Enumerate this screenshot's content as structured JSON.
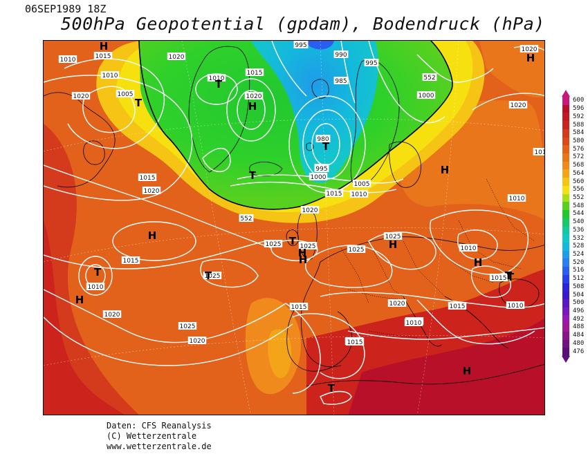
{
  "header": {
    "datetime": "06SEP1989 18Z",
    "title": "500hPa Geopotential (gpdam), Bodendruck (hPa)"
  },
  "credits": {
    "line1": "Daten: CFS Reanalysis",
    "line2": "(C) Wetterzentrale",
    "line3": "www.wetterzentrale.de"
  },
  "colors": {
    "ocean_orange": "#e2621c",
    "orange_light": "#f08a1c",
    "yellow": "#f6d410",
    "green": "#2ed02a",
    "cyan": "#1cc8d8",
    "blue": "#2a7ef0",
    "red_dark": "#b8141c",
    "contour": "#ffffff",
    "coast": "#000000"
  },
  "legend": {
    "labels": [
      "600",
      "596",
      "592",
      "588",
      "584",
      "580",
      "576",
      "572",
      "568",
      "564",
      "560",
      "556",
      "552",
      "548",
      "544",
      "540",
      "536",
      "532",
      "528",
      "524",
      "520",
      "516",
      "512",
      "508",
      "504",
      "500",
      "496",
      "492",
      "488",
      "484",
      "480",
      "476"
    ],
    "colors": [
      "#c8187a",
      "#b81028",
      "#c21a1e",
      "#cc241c",
      "#d43a1c",
      "#dc4a1c",
      "#e2621c",
      "#ea761c",
      "#f08a1c",
      "#f4a418",
      "#f6c414",
      "#f6e010",
      "#a8e018",
      "#58d020",
      "#22c830",
      "#18c868",
      "#14c8a0",
      "#14c8c8",
      "#14b8dc",
      "#1e9ce8",
      "#2a7ef0",
      "#2a5ef0",
      "#2a3ef0",
      "#2a26e0",
      "#3a18d0",
      "#5818c8",
      "#7818c0",
      "#9818b0",
      "#a01898",
      "#881688",
      "#701480",
      "#5a0f7a"
    ]
  },
  "map": {
    "pressure_labels": [
      {
        "text": "1010"
      },
      {
        "text": "1015"
      },
      {
        "text": "1010"
      },
      {
        "text": "1005"
      },
      {
        "text": "1010"
      },
      {
        "text": "1015"
      },
      {
        "text": "1020"
      },
      {
        "text": "995"
      },
      {
        "text": "990"
      },
      {
        "text": "995"
      },
      {
        "text": "985"
      },
      {
        "text": "552"
      },
      {
        "text": "1000"
      },
      {
        "text": "1020"
      },
      {
        "text": "1020"
      },
      {
        "text": "980"
      },
      {
        "text": "990"
      },
      {
        "text": "995"
      },
      {
        "text": "1000"
      },
      {
        "text": "1015"
      },
      {
        "text": "1020"
      },
      {
        "text": "1005"
      },
      {
        "text": "1010"
      },
      {
        "text": "1015"
      },
      {
        "text": "1010"
      },
      {
        "text": "552"
      },
      {
        "text": "1020"
      },
      {
        "text": "1025"
      },
      {
        "text": "1025"
      },
      {
        "text": "1025"
      },
      {
        "text": "1025"
      },
      {
        "text": "1010"
      },
      {
        "text": "1015"
      },
      {
        "text": "1010"
      },
      {
        "text": "1025"
      },
      {
        "text": "1025"
      },
      {
        "text": "1020"
      },
      {
        "text": "1015"
      },
      {
        "text": "1015"
      },
      {
        "text": "1010"
      },
      {
        "text": "1020"
      },
      {
        "text": "1020"
      },
      {
        "text": "1015"
      },
      {
        "text": "1010"
      },
      {
        "text": "1005"
      },
      {
        "text": "1010"
      },
      {
        "text": "1020"
      },
      {
        "text": "101"
      },
      {
        "text": "1015"
      },
      {
        "text": "1020"
      }
    ],
    "centers": [
      {
        "text": "H"
      },
      {
        "text": "T"
      },
      {
        "text": "T"
      },
      {
        "text": "H"
      },
      {
        "text": "T"
      },
      {
        "text": "T"
      },
      {
        "text": "T"
      },
      {
        "text": "H"
      },
      {
        "text": "H"
      },
      {
        "text": "T"
      },
      {
        "text": "H"
      },
      {
        "text": "T"
      },
      {
        "text": "H"
      },
      {
        "text": "H"
      },
      {
        "text": "H"
      },
      {
        "text": "H"
      },
      {
        "text": "T"
      },
      {
        "text": "T"
      },
      {
        "text": "H"
      },
      {
        "text": "T"
      },
      {
        "text": "H"
      }
    ]
  }
}
